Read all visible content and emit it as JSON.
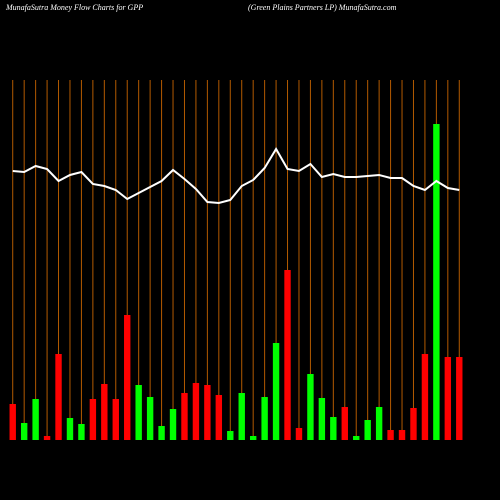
{
  "chart_data": {
    "type": "bar-line",
    "title": "MunafaSutra  Money Flow  Charts for GPP",
    "subtitle": "(Green  Plains Partners LP) MunafaSutra.com",
    "grid": true,
    "grid_color": "#b35a00",
    "series": [
      {
        "type": "bar",
        "values": [
          36,
          17,
          41,
          4,
          86,
          22,
          16,
          41,
          56,
          41,
          125,
          55,
          43,
          14,
          31,
          47,
          57,
          55,
          45,
          9,
          47,
          4,
          43,
          97,
          170,
          12,
          66,
          42,
          23,
          33,
          4,
          20,
          33,
          10,
          10,
          32,
          86,
          316,
          83,
          83
        ],
        "colors": [
          "#ff0000",
          "#00ff00",
          "#00ff00",
          "#ff0000",
          "#ff0000",
          "#00ff00",
          "#00ff00",
          "#ff0000",
          "#ff0000",
          "#ff0000",
          "#ff0000",
          "#00ff00",
          "#00ff00",
          "#00ff00",
          "#00ff00",
          "#ff0000",
          "#ff0000",
          "#ff0000",
          "#ff0000",
          "#00ff00",
          "#00ff00",
          "#00ff00",
          "#00ff00",
          "#00ff00",
          "#ff0000",
          "#ff0000",
          "#00ff00",
          "#00ff00",
          "#00ff00",
          "#ff0000",
          "#00ff00",
          "#00ff00",
          "#00ff00",
          "#ff0000",
          "#ff0000",
          "#ff0000",
          "#ff0000",
          "#00ff00",
          "#ff0000",
          "#ff0000"
        ]
      },
      {
        "type": "line",
        "color": "#ffffff",
        "values": [
          269,
          268,
          274,
          271,
          259,
          265,
          268,
          256,
          254,
          250,
          241,
          247,
          253,
          259,
          270,
          261,
          251,
          238,
          237,
          240,
          254,
          260,
          272,
          291,
          271,
          269,
          276,
          263,
          266,
          263,
          263,
          264,
          265,
          262,
          262,
          254,
          250,
          259,
          252,
          250
        ]
      }
    ]
  }
}
